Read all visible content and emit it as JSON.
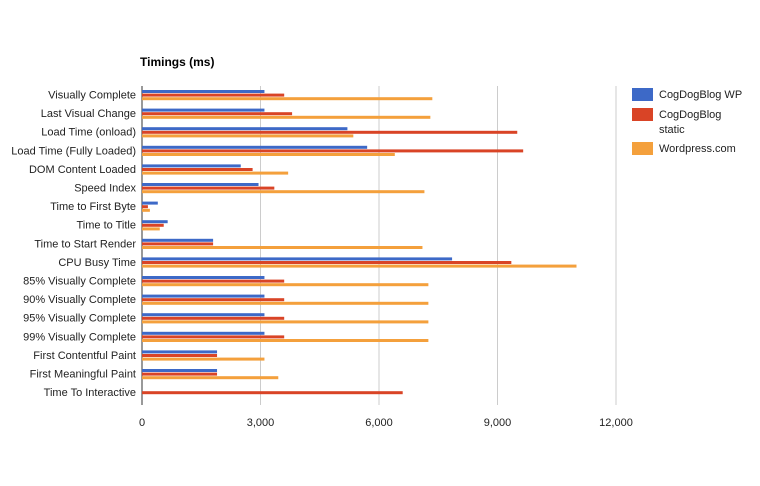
{
  "chart_data": {
    "type": "bar",
    "orientation": "horizontal",
    "title": "Timings (ms)",
    "xlabel": "",
    "ylabel": "",
    "xlim": [
      0,
      12000
    ],
    "xticks": [
      0,
      3000,
      6000,
      9000,
      12000
    ],
    "xtick_labels": [
      "0",
      "3,000",
      "6,000",
      "9,000",
      "12,000"
    ],
    "grid": true,
    "legend_position": "right",
    "categories": [
      "Visually Complete",
      "Last Visual Change",
      "Load Time (onload)",
      "Load Time (Fully Loaded)",
      "DOM Content Loaded",
      "Speed Index",
      "Time to First Byte",
      "Time to Title",
      "Time to Start Render",
      "CPU Busy Time",
      "85% Visually Complete",
      "90% Visually Complete",
      "95% Visually Complete",
      "99% Visually Complete",
      "First Contentful Paint",
      "First Meaningful Paint",
      "Time To Interactive"
    ],
    "series": [
      {
        "name": "CogDogBlog WP",
        "color": "#3d69c7",
        "values": [
          3100,
          3100,
          5200,
          5700,
          2500,
          2950,
          400,
          650,
          1800,
          7850,
          3100,
          3100,
          3100,
          3100,
          1900,
          1900,
          0
        ]
      },
      {
        "name": "CogDogBlog static",
        "color": "#d94426",
        "values": [
          3600,
          3800,
          9500,
          9650,
          2800,
          3350,
          150,
          550,
          1800,
          9350,
          3600,
          3600,
          3600,
          3600,
          1900,
          1900,
          6600
        ]
      },
      {
        "name": "Wordpress.com",
        "color": "#f4a03c",
        "values": [
          7350,
          7300,
          5350,
          6400,
          3700,
          7150,
          200,
          450,
          7100,
          11000,
          7250,
          7250,
          7250,
          7250,
          3100,
          3450,
          0
        ]
      }
    ]
  }
}
